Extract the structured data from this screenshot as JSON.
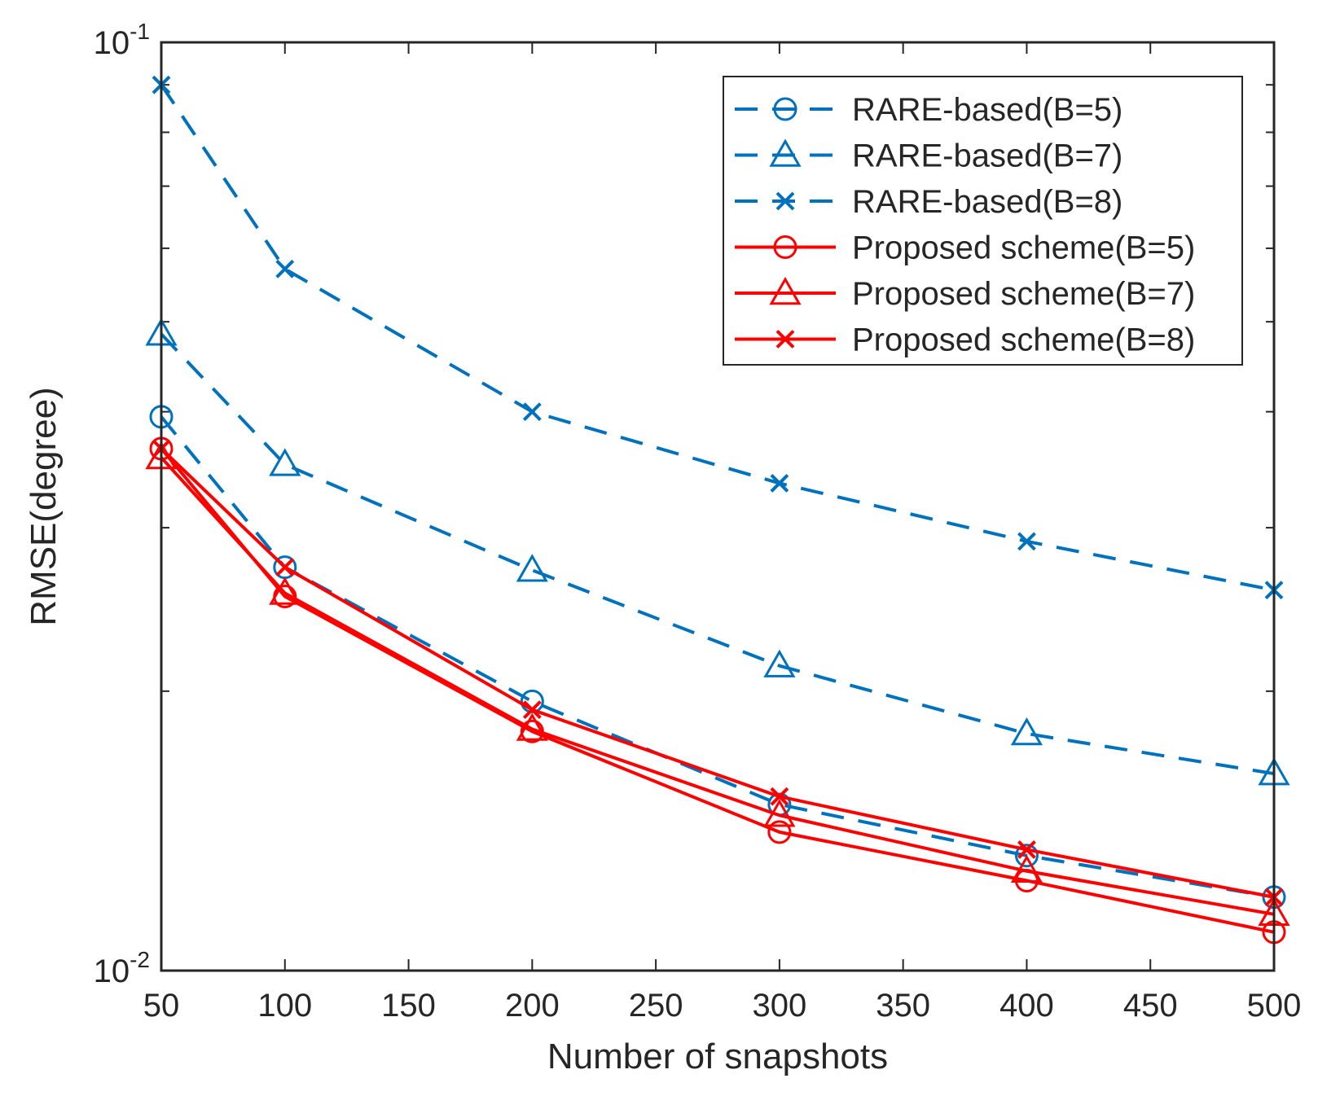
{
  "chart_data": {
    "type": "line",
    "yscale": "log",
    "xlabel": "Number of snapshots",
    "ylabel": "RMSE(degree)",
    "xlim": [
      50,
      500
    ],
    "ylim": [
      0.01,
      0.1
    ],
    "xticks": [
      50,
      100,
      150,
      200,
      250,
      300,
      350,
      400,
      450,
      500
    ],
    "xtick_labels": [
      "50",
      "100",
      "150",
      "200",
      "250",
      "300",
      "350",
      "400",
      "450",
      "500"
    ],
    "yticks_major": [
      {
        "value": 0.01,
        "base": "10",
        "exp": "-2"
      },
      {
        "value": 0.1,
        "base": "10",
        "exp": "-1"
      }
    ],
    "yticks_minor": [
      0.02,
      0.03,
      0.04,
      0.05,
      0.06,
      0.07,
      0.08,
      0.09
    ],
    "x": [
      50,
      100,
      200,
      300,
      400,
      500
    ],
    "legend_position": "top-right",
    "series": [
      {
        "name": "RARE-based(B=5)",
        "color": "#0072BD",
        "linestyle": "dashed",
        "marker": "circle",
        "values": [
          0.0395,
          0.0272,
          0.0195,
          0.0151,
          0.0133,
          0.012
        ]
      },
      {
        "name": "RARE-based(B=7)",
        "color": "#0072BD",
        "linestyle": "dashed",
        "marker": "triangle",
        "values": [
          0.0485,
          0.0351,
          0.027,
          0.0213,
          0.018,
          0.0163
        ]
      },
      {
        "name": "RARE-based(B=8)",
        "color": "#0072BD",
        "linestyle": "dashed",
        "marker": "x",
        "values": [
          0.09,
          0.057,
          0.04,
          0.0335,
          0.029,
          0.0257
        ]
      },
      {
        "name": "Proposed scheme(B=5)",
        "color": "#FF0000",
        "linestyle": "solid",
        "marker": "circle",
        "values": [
          0.0365,
          0.0253,
          0.0181,
          0.0141,
          0.0125,
          0.011
        ]
      },
      {
        "name": "Proposed scheme(B=7)",
        "color": "#FF0000",
        "linestyle": "solid",
        "marker": "triangle",
        "values": [
          0.0357,
          0.0255,
          0.0182,
          0.0147,
          0.0128,
          0.0115
        ]
      },
      {
        "name": "Proposed scheme(B=8)",
        "color": "#FF0000",
        "linestyle": "solid",
        "marker": "x",
        "values": [
          0.0365,
          0.0272,
          0.0191,
          0.0154,
          0.0135,
          0.012
        ]
      }
    ]
  }
}
